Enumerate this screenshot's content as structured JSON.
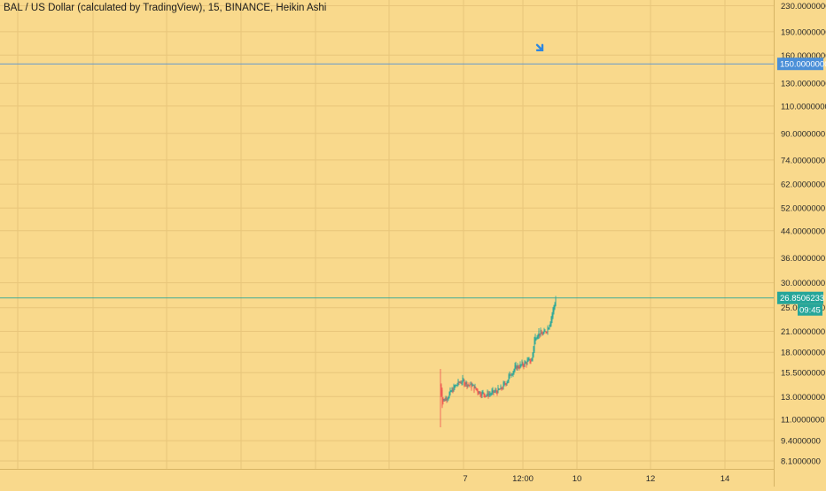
{
  "chart_data": {
    "type": "candlestick",
    "title": "BAL / US Dollar (calculated by TradingView), 15, BINANCE, Heikin Ashi",
    "y_scale": "log",
    "ylim": [
      7.8,
      250
    ],
    "y_ticks": [
      "230.0000000",
      "190.0000000",
      "160.0000000",
      "130.0000000",
      "110.0000000",
      "90.0000000",
      "74.0000000",
      "62.0000000",
      "52.0000000",
      "44.0000000",
      "36.0000000",
      "30.0000000",
      "25.0000000",
      "21.0000000",
      "18.0000000",
      "15.5000000",
      "13.0000000",
      "11.0000000",
      "9.4000000",
      "8.1000000"
    ],
    "x_ticks": [
      "7",
      "12:00",
      "10",
      "12",
      "14"
    ],
    "price_lines": [
      {
        "label": "150.0000000",
        "value": 150,
        "color": "#4a8fd8"
      },
      {
        "label": "26.8506233",
        "value": 26.85,
        "color": "#26a69a"
      }
    ],
    "countdown": "09:45",
    "marker": {
      "name": "arrow-down-right-icon",
      "value": 168,
      "color": "#2d86e0"
    },
    "grid": true,
    "colors": {
      "background": "#f9d98c",
      "grid": "#e8c57a",
      "up": "#26a69a",
      "down": "#ef5350"
    },
    "price_path": [
      {
        "t": 0,
        "v": 14.2
      },
      {
        "t": 2,
        "v": 12.4
      },
      {
        "t": 6,
        "v": 12.9
      },
      {
        "t": 12,
        "v": 13.5
      },
      {
        "t": 18,
        "v": 14.2
      },
      {
        "t": 24,
        "v": 14.6
      },
      {
        "t": 30,
        "v": 14.3
      },
      {
        "t": 36,
        "v": 14.0
      },
      {
        "t": 44,
        "v": 13.4
      },
      {
        "t": 52,
        "v": 13.2
      },
      {
        "t": 60,
        "v": 13.4
      },
      {
        "t": 68,
        "v": 13.7
      },
      {
        "t": 74,
        "v": 14.5
      },
      {
        "t": 80,
        "v": 15.6
      },
      {
        "t": 86,
        "v": 16.2
      },
      {
        "t": 92,
        "v": 16.4
      },
      {
        "t": 98,
        "v": 16.8
      },
      {
        "t": 103,
        "v": 17.0
      },
      {
        "t": 106,
        "v": 20.0
      },
      {
        "t": 110,
        "v": 21.0
      },
      {
        "t": 114,
        "v": 20.5
      },
      {
        "t": 118,
        "v": 20.8
      },
      {
        "t": 122,
        "v": 22.0
      },
      {
        "t": 126,
        "v": 24.0
      },
      {
        "t": 130,
        "v": 26.85
      }
    ]
  }
}
